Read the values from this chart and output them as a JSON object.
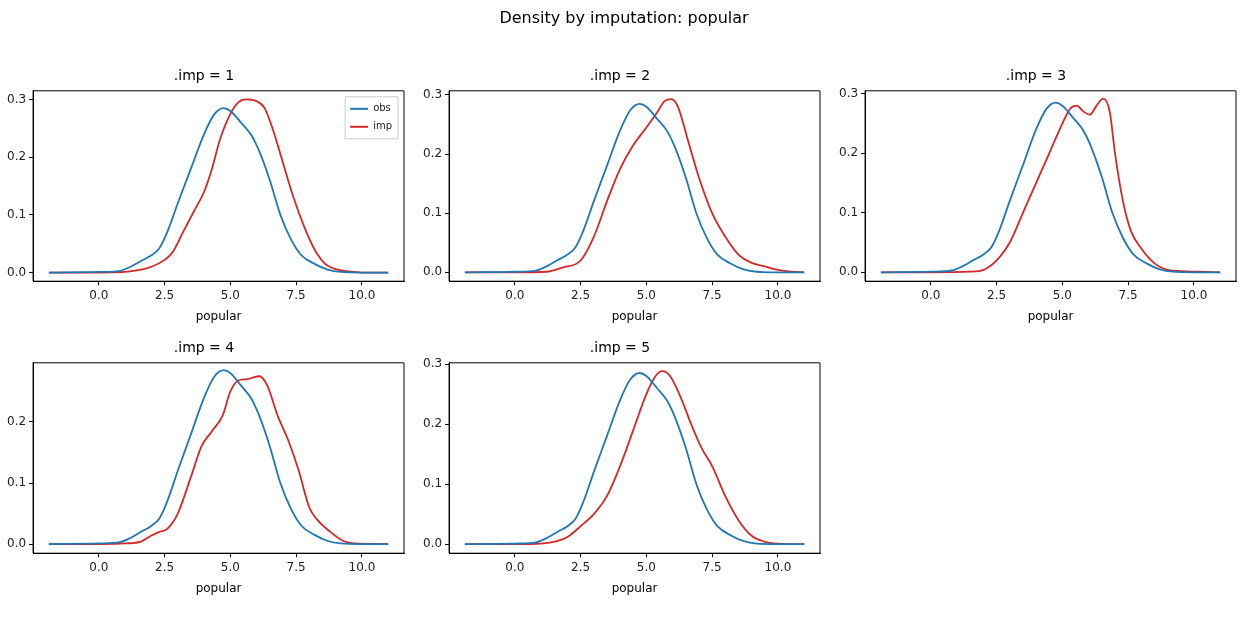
{
  "chart_data": [
    {
      "type": "other",
      "title": "Density by imputation: popular"
    },
    {
      "type": "line",
      "title": ".imp = 1",
      "xlabel": "popular",
      "legend": "top right",
      "grid": false,
      "marker": "none",
      "line_style": "solid",
      "xlim": [
        -2.5,
        11.6
      ],
      "ylim": [
        -0.015,
        0.315
      ],
      "xticks": [
        {
          "value": 0,
          "label": "0.0"
        },
        {
          "value": 2.5,
          "label": "2.5"
        },
        {
          "value": 5,
          "label": "5.0"
        },
        {
          "value": 7.5,
          "label": "7.5"
        },
        {
          "value": 10,
          "label": "10.0"
        }
      ],
      "yticks": [
        {
          "value": 0,
          "label": "0.0"
        },
        {
          "value": 0.1,
          "label": "0.1"
        },
        {
          "value": 0.2,
          "label": "0.2"
        },
        {
          "value": 0.3,
          "label": "0.3"
        }
      ],
      "series": [
        {
          "name": "obs",
          "color": "#1f77b4",
          "x": [
            -1.9,
            0,
            0.8,
            1.2,
            1.6,
            2.0,
            2.3,
            2.6,
            3.0,
            3.5,
            4.0,
            4.4,
            4.75,
            5.0,
            5.4,
            5.8,
            6.1,
            6.5,
            6.9,
            7.3,
            7.7,
            8.2,
            8.7,
            9.2,
            10,
            11
          ],
          "values": [
            0,
            0.001,
            0.003,
            0.01,
            0.02,
            0.03,
            0.042,
            0.07,
            0.12,
            0.18,
            0.24,
            0.275,
            0.285,
            0.28,
            0.26,
            0.238,
            0.21,
            0.16,
            0.1,
            0.058,
            0.03,
            0.015,
            0.005,
            0.001,
            0,
            0
          ]
        },
        {
          "name": "imp",
          "color": "#d62728",
          "x": [
            -1.9,
            0,
            1.0,
            1.5,
            2.0,
            2.5,
            2.8,
            3.2,
            3.6,
            4.0,
            4.3,
            4.6,
            5.0,
            5.3,
            5.6,
            6.0,
            6.3,
            6.6,
            7.0,
            7.4,
            7.8,
            8.2,
            8.6,
            9.0,
            9.5,
            10,
            11
          ],
          "values": [
            0,
            0,
            0.001,
            0.004,
            0.01,
            0.022,
            0.035,
            0.07,
            0.105,
            0.14,
            0.18,
            0.23,
            0.275,
            0.295,
            0.3,
            0.297,
            0.285,
            0.25,
            0.19,
            0.13,
            0.08,
            0.04,
            0.015,
            0.006,
            0.002,
            0,
            0
          ]
        }
      ]
    },
    {
      "type": "line",
      "title": ".imp = 2",
      "xlabel": "popular",
      "grid": false,
      "marker": "none",
      "line_style": "solid",
      "xlim": [
        -2.5,
        11.6
      ],
      "ylim": [
        -0.015,
        0.307
      ],
      "xticks": [
        {
          "value": 0,
          "label": "0.0"
        },
        {
          "value": 2.5,
          "label": "2.5"
        },
        {
          "value": 5,
          "label": "5.0"
        },
        {
          "value": 7.5,
          "label": "7.5"
        },
        {
          "value": 10,
          "label": "10.0"
        }
      ],
      "yticks": [
        {
          "value": 0,
          "label": "0.0"
        },
        {
          "value": 0.1,
          "label": "0.1"
        },
        {
          "value": 0.2,
          "label": "0.2"
        },
        {
          "value": 0.3,
          "label": "0.3"
        }
      ],
      "series": [
        {
          "color": "#1f77b4",
          "x": [
            -1.9,
            0,
            0.8,
            1.2,
            1.6,
            2.0,
            2.3,
            2.6,
            3.0,
            3.5,
            4.0,
            4.4,
            4.75,
            5.0,
            5.4,
            5.8,
            6.1,
            6.5,
            6.9,
            7.3,
            7.7,
            8.2,
            8.7,
            9.2,
            10,
            11
          ],
          "values": [
            0,
            0.001,
            0.003,
            0.01,
            0.02,
            0.03,
            0.042,
            0.07,
            0.12,
            0.18,
            0.24,
            0.275,
            0.285,
            0.28,
            0.26,
            0.238,
            0.21,
            0.16,
            0.1,
            0.058,
            0.03,
            0.015,
            0.005,
            0.001,
            0,
            0
          ]
        },
        {
          "color": "#d62728",
          "x": [
            -1.9,
            0,
            1.2,
            1.8,
            2.5,
            3.0,
            3.5,
            4.0,
            4.5,
            5.0,
            5.4,
            5.7,
            5.95,
            6.2,
            6.6,
            7.0,
            7.5,
            8.0,
            8.5,
            9.0,
            9.5,
            10.0,
            10.5,
            11
          ],
          "values": [
            0,
            0,
            0.001,
            0.008,
            0.02,
            0.06,
            0.12,
            0.175,
            0.215,
            0.245,
            0.27,
            0.29,
            0.293,
            0.28,
            0.22,
            0.16,
            0.1,
            0.06,
            0.03,
            0.016,
            0.01,
            0.004,
            0.001,
            0
          ]
        }
      ]
    },
    {
      "type": "line",
      "title": ".imp = 3",
      "xlabel": "popular",
      "grid": false,
      "marker": "none",
      "line_style": "solid",
      "xlim": [
        -2.5,
        11.6
      ],
      "ylim": [
        -0.015,
        0.305
      ],
      "xticks": [
        {
          "value": 0,
          "label": "0.0"
        },
        {
          "value": 2.5,
          "label": "2.5"
        },
        {
          "value": 5,
          "label": "5.0"
        },
        {
          "value": 7.5,
          "label": "7.5"
        },
        {
          "value": 10,
          "label": "10.0"
        }
      ],
      "yticks": [
        {
          "value": 0,
          "label": "0.0"
        },
        {
          "value": 0.1,
          "label": "0.1"
        },
        {
          "value": 0.2,
          "label": "0.2"
        },
        {
          "value": 0.3,
          "label": "0.3"
        }
      ],
      "series": [
        {
          "color": "#1f77b4",
          "x": [
            -1.9,
            0,
            0.8,
            1.2,
            1.6,
            2.0,
            2.3,
            2.6,
            3.0,
            3.5,
            4.0,
            4.4,
            4.75,
            5.0,
            5.4,
            5.8,
            6.1,
            6.5,
            6.9,
            7.3,
            7.7,
            8.2,
            8.7,
            9.2,
            10,
            11
          ],
          "values": [
            0,
            0.001,
            0.003,
            0.01,
            0.02,
            0.03,
            0.042,
            0.07,
            0.12,
            0.18,
            0.24,
            0.275,
            0.285,
            0.28,
            0.26,
            0.238,
            0.21,
            0.16,
            0.1,
            0.058,
            0.03,
            0.015,
            0.005,
            0.001,
            0,
            0
          ]
        },
        {
          "color": "#d62728",
          "x": [
            -1.9,
            0,
            1.5,
            2.0,
            2.5,
            3.0,
            3.5,
            4.0,
            4.5,
            5.0,
            5.3,
            5.55,
            5.8,
            6.05,
            6.3,
            6.55,
            6.8,
            7.0,
            7.3,
            7.6,
            8.0,
            8.5,
            9.0,
            9.5,
            10.2,
            11
          ],
          "values": [
            0,
            0,
            0.001,
            0.004,
            0.02,
            0.05,
            0.1,
            0.15,
            0.2,
            0.25,
            0.275,
            0.28,
            0.27,
            0.265,
            0.28,
            0.292,
            0.27,
            0.2,
            0.12,
            0.07,
            0.04,
            0.015,
            0.004,
            0.002,
            0.001,
            0
          ]
        }
      ]
    },
    {
      "type": "line",
      "title": ".imp = 4",
      "xlabel": "popular",
      "grid": false,
      "marker": "none",
      "line_style": "solid",
      "xlim": [
        -2.5,
        11.6
      ],
      "ylim": [
        -0.015,
        0.297
      ],
      "xticks": [
        {
          "value": 0,
          "label": "0.0"
        },
        {
          "value": 2.5,
          "label": "2.5"
        },
        {
          "value": 5,
          "label": "5.0"
        },
        {
          "value": 7.5,
          "label": "7.5"
        },
        {
          "value": 10,
          "label": "10.0"
        }
      ],
      "yticks": [
        {
          "value": 0,
          "label": "0.0"
        },
        {
          "value": 0.1,
          "label": "0.1"
        },
        {
          "value": 0.2,
          "label": "0.2"
        }
      ],
      "series": [
        {
          "color": "#1f77b4",
          "x": [
            -1.9,
            0,
            0.8,
            1.2,
            1.6,
            2.0,
            2.3,
            2.6,
            3.0,
            3.5,
            4.0,
            4.4,
            4.75,
            5.0,
            5.4,
            5.8,
            6.1,
            6.5,
            6.9,
            7.3,
            7.7,
            8.2,
            8.7,
            9.2,
            10,
            11
          ],
          "values": [
            0,
            0.001,
            0.003,
            0.01,
            0.02,
            0.03,
            0.042,
            0.07,
            0.12,
            0.18,
            0.24,
            0.275,
            0.285,
            0.28,
            0.26,
            0.238,
            0.21,
            0.16,
            0.1,
            0.058,
            0.03,
            0.015,
            0.005,
            0.001,
            0,
            0
          ]
        },
        {
          "color": "#d62728",
          "x": [
            -1.9,
            0,
            1.0,
            1.6,
            2.0,
            2.3,
            2.6,
            3.0,
            3.5,
            3.9,
            4.3,
            4.7,
            5.0,
            5.3,
            5.6,
            6.1,
            6.4,
            6.8,
            7.2,
            7.6,
            8.0,
            8.3,
            8.8,
            9.3,
            9.7,
            11
          ],
          "values": [
            0,
            0,
            0.001,
            0.004,
            0.014,
            0.02,
            0.025,
            0.05,
            0.11,
            0.16,
            0.185,
            0.21,
            0.25,
            0.268,
            0.27,
            0.275,
            0.26,
            0.21,
            0.17,
            0.12,
            0.06,
            0.04,
            0.02,
            0.005,
            0.001,
            0
          ]
        }
      ]
    },
    {
      "type": "line",
      "title": ".imp = 5",
      "xlabel": "popular",
      "grid": false,
      "marker": "none",
      "line_style": "solid",
      "xlim": [
        -2.5,
        11.6
      ],
      "ylim": [
        -0.015,
        0.302
      ],
      "xticks": [
        {
          "value": 0,
          "label": "0.0"
        },
        {
          "value": 2.5,
          "label": "2.5"
        },
        {
          "value": 5,
          "label": "5.0"
        },
        {
          "value": 7.5,
          "label": "7.5"
        },
        {
          "value": 10,
          "label": "10.0"
        }
      ],
      "yticks": [
        {
          "value": 0,
          "label": "0.0"
        },
        {
          "value": 0.1,
          "label": "0.1"
        },
        {
          "value": 0.2,
          "label": "0.2"
        },
        {
          "value": 0.3,
          "label": "0.3"
        }
      ],
      "series": [
        {
          "color": "#1f77b4",
          "x": [
            -1.9,
            0,
            0.8,
            1.2,
            1.6,
            2.0,
            2.3,
            2.6,
            3.0,
            3.5,
            4.0,
            4.4,
            4.75,
            5.0,
            5.4,
            5.8,
            6.1,
            6.5,
            6.9,
            7.3,
            7.7,
            8.2,
            8.7,
            9.2,
            10,
            11
          ],
          "values": [
            0,
            0.001,
            0.003,
            0.01,
            0.02,
            0.03,
            0.042,
            0.07,
            0.12,
            0.18,
            0.24,
            0.275,
            0.285,
            0.28,
            0.26,
            0.238,
            0.21,
            0.16,
            0.1,
            0.058,
            0.03,
            0.015,
            0.005,
            0.001,
            0,
            0
          ]
        },
        {
          "color": "#d62728",
          "x": [
            -1.9,
            0,
            1.0,
            1.6,
            2.0,
            2.5,
            3.0,
            3.5,
            4.0,
            4.5,
            5.0,
            5.35,
            5.6,
            5.9,
            6.3,
            6.7,
            7.1,
            7.5,
            8.0,
            8.5,
            9.0,
            9.5,
            10,
            11
          ],
          "values": [
            0,
            0,
            0.001,
            0.005,
            0.012,
            0.03,
            0.05,
            0.08,
            0.13,
            0.19,
            0.25,
            0.28,
            0.288,
            0.28,
            0.245,
            0.2,
            0.16,
            0.13,
            0.08,
            0.04,
            0.014,
            0.004,
            0.001,
            0
          ]
        }
      ]
    }
  ]
}
